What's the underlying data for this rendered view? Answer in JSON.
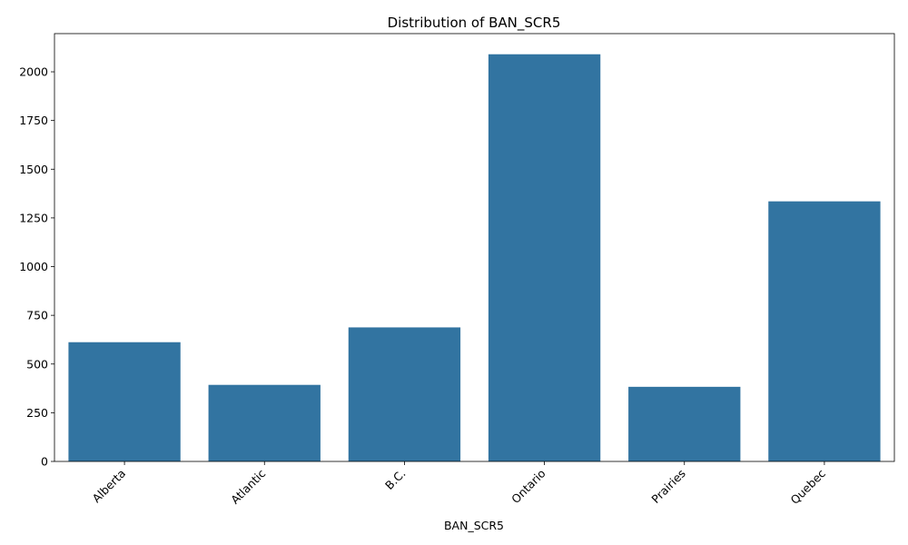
{
  "chart_data": {
    "type": "bar",
    "title": "Distribution of BAN_SCR5",
    "xlabel": "BAN_SCR5",
    "ylabel": "",
    "categories": [
      "Alberta",
      "Atlantic",
      "B.C.",
      "Ontario",
      "Prairies",
      "Quebec"
    ],
    "values": [
      612,
      393,
      688,
      2090,
      383,
      1335
    ],
    "ylim": [
      0,
      2196
    ],
    "yticks": [
      0,
      250,
      500,
      750,
      1000,
      1250,
      1500,
      1750,
      2000
    ],
    "grid": false,
    "bar_color": "#3274a1"
  }
}
